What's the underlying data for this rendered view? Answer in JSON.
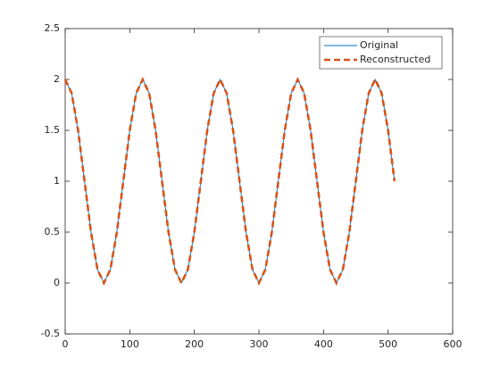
{
  "chart_data": {
    "type": "line",
    "x": [
      0,
      10,
      20,
      30,
      40,
      50,
      60,
      70,
      80,
      90,
      100,
      110,
      120,
      130,
      140,
      150,
      160,
      170,
      180,
      190,
      200,
      210,
      220,
      230,
      240,
      250,
      260,
      270,
      280,
      290,
      300,
      310,
      320,
      330,
      340,
      350,
      360,
      370,
      380,
      390,
      400,
      410,
      420,
      430,
      440,
      450,
      460,
      470,
      480,
      490,
      500,
      510
    ],
    "series": [
      {
        "name": "Original",
        "color": "#0072bd",
        "dash": false,
        "values": [
          2,
          1.866,
          1.5,
          1,
          0.5,
          0.134,
          0,
          0.134,
          0.5,
          1,
          1.5,
          1.866,
          2,
          1.866,
          1.5,
          1,
          0.5,
          0.134,
          0,
          0.134,
          0.5,
          1,
          1.5,
          1.866,
          2,
          1.866,
          1.5,
          1,
          0.5,
          0.134,
          0,
          0.134,
          0.5,
          1,
          1.5,
          1.866,
          2,
          1.866,
          1.5,
          1,
          0.5,
          0.134,
          0,
          0.134,
          0.5,
          1,
          1.5,
          1.866,
          2,
          1.866,
          1.5,
          1
        ]
      },
      {
        "name": "Reconstructed",
        "color": "#d95319",
        "dash": true,
        "values": [
          2,
          1.866,
          1.5,
          1,
          0.5,
          0.134,
          0,
          0.134,
          0.5,
          1,
          1.5,
          1.866,
          2,
          1.866,
          1.5,
          1,
          0.5,
          0.134,
          0,
          0.134,
          0.5,
          1,
          1.5,
          1.866,
          2,
          1.866,
          1.5,
          1,
          0.5,
          0.134,
          0,
          0.134,
          0.5,
          1,
          1.5,
          1.866,
          2,
          1.866,
          1.5,
          1,
          0.5,
          0.134,
          0,
          0.134,
          0.5,
          1,
          1.5,
          1.866,
          2,
          1.866,
          1.5,
          1
        ]
      }
    ],
    "xlim": [
      0,
      600
    ],
    "xticks": [
      0,
      100,
      200,
      300,
      400,
      500,
      600
    ],
    "ylim": [
      -0.5,
      2.5
    ],
    "yticks": [
      -0.5,
      0,
      0.5,
      1,
      1.5,
      2,
      2.5
    ],
    "legend": "top-right",
    "grid": false
  }
}
